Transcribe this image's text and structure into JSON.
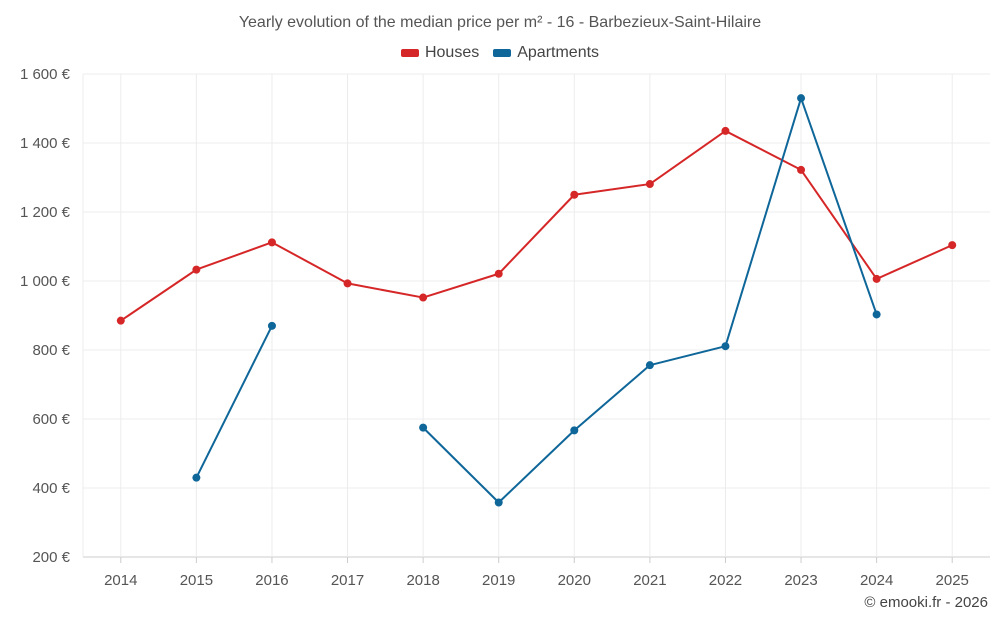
{
  "chart_data": {
    "type": "line",
    "title": "Yearly evolution of the median price per m² - 16 - Barbezieux-Saint-Hilaire",
    "xlabel": "",
    "ylabel": "",
    "categories": [
      "2014",
      "2015",
      "2016",
      "2017",
      "2018",
      "2019",
      "2020",
      "2021",
      "2022",
      "2023",
      "2024",
      "2025"
    ],
    "ylim": [
      200,
      1600
    ],
    "yticks": [
      200,
      400,
      600,
      800,
      1000,
      1200,
      1400,
      1600
    ],
    "ytick_labels": [
      "200 €",
      "400 €",
      "600 €",
      "800 €",
      "1 000 €",
      "1 200 €",
      "1 400 €",
      "1 600 €"
    ],
    "grid": true,
    "legend_position": "top-center",
    "series": [
      {
        "name": "Houses",
        "color": "#d62728",
        "values": [
          885,
          1033,
          1112,
          993,
          952,
          1021,
          1250,
          1281,
          1435,
          1322,
          1006,
          1104
        ]
      },
      {
        "name": "Apartments",
        "color": "#0e6699",
        "values": [
          null,
          430,
          870,
          null,
          575,
          358,
          567,
          756,
          811,
          1530,
          903,
          null
        ]
      }
    ]
  },
  "credit": "© emooki.fr - 2026"
}
